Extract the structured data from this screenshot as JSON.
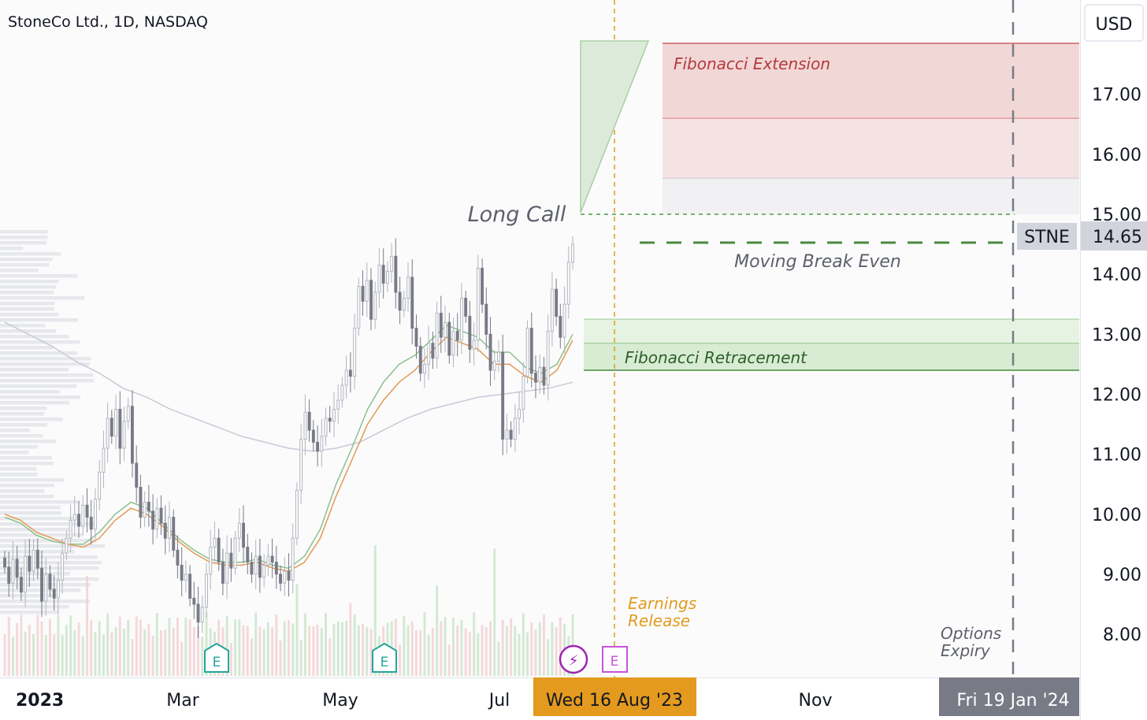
{
  "header": {
    "symbol_title": "StoneCo Ltd., 1D, NASDAQ",
    "currency_button": "USD"
  },
  "colors": {
    "up": "#b2b5be",
    "down": "#787b86",
    "ema_fast": "#e39a52",
    "ema_slow": "#8dc08e",
    "sma_long": "#c9c9d6",
    "fib_ext": "#f2d7d7",
    "fib_ret": "#dcefd7",
    "earnings": "#e39a1f",
    "expiry": "#787b86",
    "price_label_bg": "#d1d4dc"
  },
  "axes": {
    "y_ticks": [
      "17.00",
      "16.00",
      "15.00",
      "14.00",
      "13.00",
      "12.00",
      "11.00",
      "10.00",
      "9.00",
      "8.00"
    ],
    "y_range": [
      7.6,
      18.0
    ],
    "x_labels": [
      "2023",
      "Mar",
      "May",
      "Jul",
      "Nov"
    ],
    "x_highlight_earnings": "Wed 16 Aug '23",
    "x_highlight_expiry": "Fri 19 Jan '24"
  },
  "price_marker": {
    "ticker": "STNE",
    "value": "14.65"
  },
  "annotations": {
    "long_call": "Long Call",
    "moving_break_even": "Moving Break Even",
    "fib_extension": "Fibonacci Extension",
    "fib_retracement": "Fibonacci Retracement",
    "earnings_line1": "Earnings",
    "earnings_line2": "Release",
    "expiry_line1": "Options",
    "expiry_line2": "Expiry"
  },
  "event_icons": {
    "earnings_letter": "E",
    "dividend_glyph": "⚡"
  },
  "levels": {
    "long_call_strike": 15.0,
    "moving_break_even": 14.55,
    "fib_extension_bands": [
      [
        17.85,
        16.6
      ],
      [
        16.6,
        15.6
      ],
      [
        15.6,
        15.0
      ]
    ],
    "fib_retracement_bands": [
      [
        13.25,
        12.85
      ],
      [
        12.85,
        12.4
      ]
    ]
  },
  "chart_data": {
    "type": "candlestick",
    "title": "StoneCo Ltd., 1D, NASDAQ",
    "xlabel": "",
    "ylabel": "",
    "ylim": [
      7.6,
      18.0
    ],
    "grid": false,
    "period": "2023-01-03 to 2023-07-31",
    "closes": [
      9.12,
      8.85,
      9.25,
      8.95,
      8.7,
      9.3,
      9.05,
      9.4,
      9.1,
      8.55,
      9.0,
      8.75,
      8.6,
      8.9,
      9.35,
      9.6,
      9.9,
      10.0,
      9.8,
      10.15,
      9.95,
      9.75,
      10.25,
      10.7,
      11.1,
      11.6,
      11.3,
      11.75,
      11.1,
      11.55,
      11.8,
      10.85,
      10.45,
      9.95,
      10.2,
      10.05,
      9.75,
      10.1,
      9.85,
      9.6,
      9.95,
      9.4,
      9.15,
      8.9,
      9.0,
      8.6,
      8.5,
      8.2,
      8.45,
      9.0,
      9.45,
      9.6,
      9.2,
      8.85,
      9.35,
      9.1,
      9.6,
      9.85,
      9.45,
      9.2,
      9.0,
      9.3,
      8.95,
      9.15,
      9.3,
      9.2,
      9.0,
      8.85,
      9.05,
      8.9,
      9.6,
      10.4,
      11.25,
      11.7,
      11.4,
      11.2,
      11.05,
      11.3,
      11.6,
      11.55,
      11.75,
      11.9,
      12.15,
      12.4,
      12.3,
      13.1,
      13.8,
      13.55,
      13.9,
      13.25,
      13.7,
      14.15,
      13.85,
      14.05,
      14.3,
      13.7,
      13.4,
      13.6,
      13.95,
      13.1,
      12.8,
      12.35,
      12.5,
      12.85,
      12.6,
      13.35,
      12.95,
      13.2,
      12.65,
      13.05,
      12.9,
      13.6,
      13.3,
      12.75,
      12.9,
      14.1,
      13.5,
      13.0,
      12.4,
      12.55,
      12.7,
      11.25,
      11.4,
      11.25,
      11.6,
      11.75,
      12.3,
      13.1,
      12.35,
      12.2,
      12.45,
      12.15,
      13.05,
      13.75,
      13.3,
      12.95,
      13.5,
      14.2,
      14.5
    ],
    "ema_fast": [
      10.0,
      9.9,
      9.7,
      9.6,
      9.5,
      9.45,
      9.6,
      9.9,
      10.1,
      10.0,
      9.8,
      9.55,
      9.35,
      9.2,
      9.15,
      9.15,
      9.2,
      9.1,
      9.05,
      9.2,
      9.6,
      10.3,
      10.9,
      11.5,
      11.9,
      12.2,
      12.4,
      12.7,
      12.95,
      12.85,
      12.75,
      12.5,
      12.5,
      12.3,
      12.2,
      12.4,
      12.9
    ],
    "ema_slow": [
      9.95,
      9.85,
      9.65,
      9.55,
      9.5,
      9.5,
      9.7,
      10.0,
      10.2,
      10.1,
      9.85,
      9.6,
      9.4,
      9.25,
      9.2,
      9.2,
      9.25,
      9.15,
      9.1,
      9.3,
      9.75,
      10.5,
      11.1,
      11.75,
      12.2,
      12.5,
      12.65,
      12.9,
      13.15,
      13.05,
      12.95,
      12.7,
      12.7,
      12.45,
      12.35,
      12.5,
      13.0
    ],
    "sma_200": [
      13.2,
      13.0,
      12.8,
      12.55,
      12.35,
      12.1,
      11.95,
      11.75,
      11.6,
      11.45,
      11.3,
      11.2,
      11.1,
      11.05,
      11.1,
      11.2,
      11.4,
      11.6,
      11.75,
      11.85,
      11.95,
      12.0,
      12.05,
      12.1,
      12.2
    ]
  }
}
